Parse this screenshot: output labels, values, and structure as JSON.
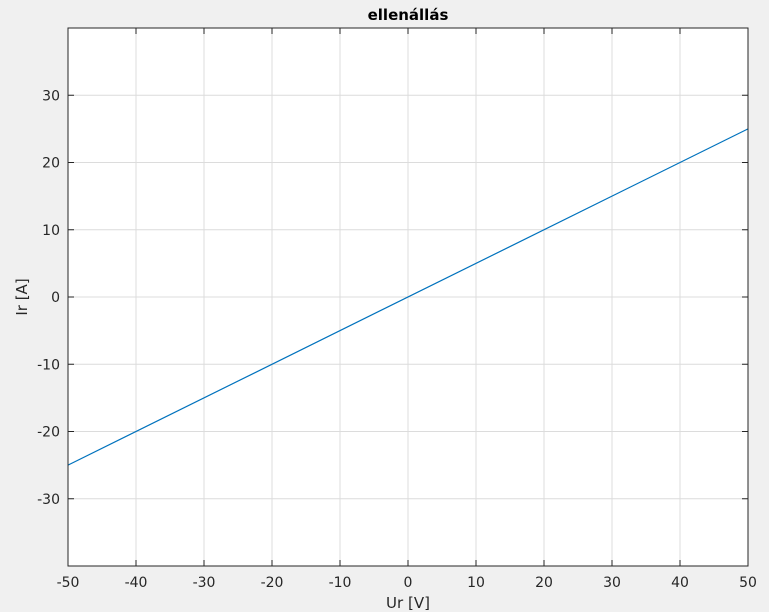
{
  "chart_data": {
    "type": "line",
    "title": "ellenállás",
    "xlabel": "Ur [V]",
    "ylabel": "Ir [A]",
    "xlim": [
      -50,
      50
    ],
    "ylim": [
      -40,
      40
    ],
    "xticks": [
      -50,
      -40,
      -30,
      -20,
      -10,
      0,
      10,
      20,
      30,
      40,
      50
    ],
    "yticks": [
      -30,
      -20,
      -10,
      0,
      10,
      20,
      30
    ],
    "grid": true,
    "series": [
      {
        "color": "#0072bd",
        "x": [
          -50,
          50
        ],
        "y": [
          -25,
          25
        ]
      }
    ]
  }
}
